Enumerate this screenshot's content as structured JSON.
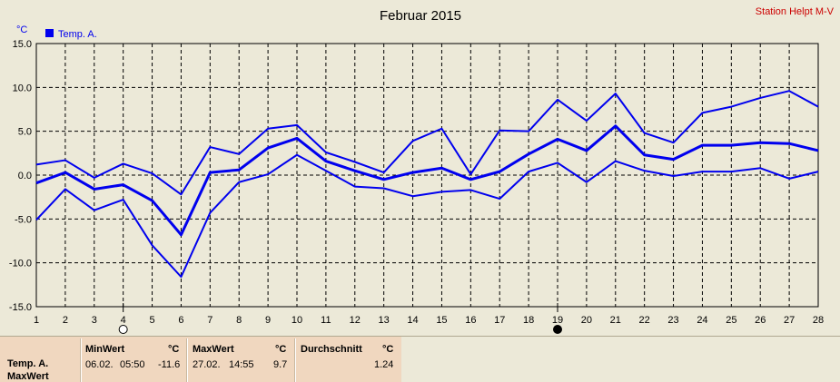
{
  "chart_data": {
    "type": "line",
    "title": "Februar 2015",
    "station": "Station Helpt M-V",
    "yunit": "°C",
    "legend": "Temp. A.",
    "ylim": [
      -15,
      15
    ],
    "yticks": [
      "15.0",
      "10.0",
      "5.0",
      "0.0",
      "-5.0",
      "-10.0",
      "-15.0"
    ],
    "yticks_values": [
      15,
      10,
      5,
      0,
      -5,
      -10,
      -15
    ],
    "x": [
      1,
      2,
      3,
      4,
      5,
      6,
      7,
      8,
      9,
      10,
      11,
      12,
      13,
      14,
      15,
      16,
      17,
      18,
      19,
      20,
      21,
      22,
      23,
      24,
      25,
      26,
      27,
      28
    ],
    "series": [
      {
        "values": [
          1.2,
          1.7,
          -0.3,
          1.3,
          0.2,
          -2.2,
          3.2,
          2.4,
          5.3,
          5.7,
          2.6,
          1.5,
          0.3,
          3.9,
          5.3,
          0.1,
          5.1,
          5.0,
          8.6,
          6.2,
          9.3,
          4.8,
          3.7,
          7.1,
          7.8,
          8.8,
          9.6,
          7.8
        ]
      },
      {
        "values": [
          -0.9,
          0.3,
          -1.6,
          -1.1,
          -2.9,
          -6.8,
          0.3,
          0.6,
          3.1,
          4.2,
          1.6,
          0.5,
          -0.5,
          0.3,
          0.8,
          -0.5,
          0.4,
          2.4,
          4.1,
          2.8,
          5.6,
          2.3,
          1.8,
          3.4,
          3.4,
          3.7,
          3.6,
          2.8
        ]
      },
      {
        "values": [
          -5.1,
          -1.6,
          -4.0,
          -2.8,
          -8.0,
          -11.6,
          -4.3,
          -0.8,
          0.1,
          2.3,
          0.5,
          -1.3,
          -1.5,
          -2.4,
          -1.9,
          -1.7,
          -2.7,
          0.4,
          1.4,
          -0.8,
          1.6,
          0.5,
          -0.1,
          0.4,
          0.4,
          0.8,
          -0.4,
          0.4
        ]
      }
    ],
    "markers": [
      {
        "x": 4,
        "type": "open-circle-icon"
      },
      {
        "x": 19,
        "type": "filled-circle-icon"
      }
    ],
    "grid": true,
    "legend_position": "top-left",
    "colors": {
      "series": "#0000ee",
      "grid": "#000000",
      "station": "#cc0000"
    }
  },
  "stats": {
    "row_label_1": "Temp. A.",
    "row_label_2": "MaxWert",
    "min_header": "MinWert",
    "min_unit": "°C",
    "min_date": "06.02.",
    "min_time": "05:50",
    "min_value": "-11.6",
    "max_header": "MaxWert",
    "max_unit": "°C",
    "max_date": "27.02.",
    "max_time": "14:55",
    "max_value": "9.7",
    "avg_header": "Durchschnitt",
    "avg_unit": "°C",
    "avg_value": "1.24"
  }
}
